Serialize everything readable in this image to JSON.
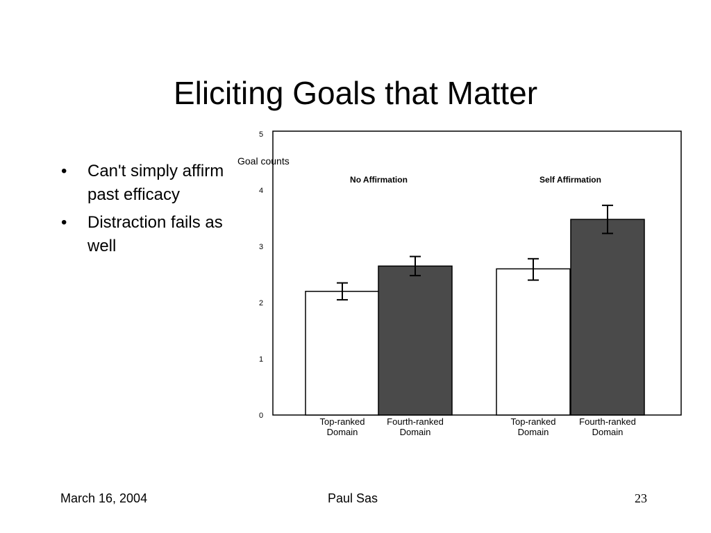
{
  "slide": {
    "title": "Eliciting Goals that Matter",
    "bullets": [
      "Can't simply affirm past efficacy",
      "Distraction fails as well"
    ]
  },
  "footer": {
    "date": "March 16, 2004",
    "author": "Paul Sas",
    "page": "23"
  },
  "chart_data": {
    "type": "bar",
    "ylabel": "Goal counts",
    "ylim": [
      0,
      5
    ],
    "yticks": [
      0,
      1,
      2,
      3,
      4,
      5
    ],
    "grid": false,
    "groups": [
      {
        "name": "No Affirmation",
        "bars": [
          {
            "category_lines": [
              "Top-ranked",
              "Domain"
            ],
            "value": 2.2,
            "error": [
              2.05,
              2.35
            ],
            "fill": "#ffffff"
          },
          {
            "category_lines": [
              "Fourth-ranked",
              "Domain"
            ],
            "value": 2.65,
            "error": [
              2.48,
              2.82
            ],
            "fill": "#4a4a4a"
          }
        ]
      },
      {
        "name": "Self Affirmation",
        "bars": [
          {
            "category_lines": [
              "Top-ranked",
              "Domain"
            ],
            "value": 2.6,
            "error": [
              2.4,
              2.78
            ],
            "fill": "#ffffff"
          },
          {
            "category_lines": [
              "Fourth-ranked",
              "Domain"
            ],
            "value": 3.48,
            "error": [
              3.23,
              3.73
            ],
            "fill": "#4a4a4a"
          }
        ]
      }
    ]
  }
}
